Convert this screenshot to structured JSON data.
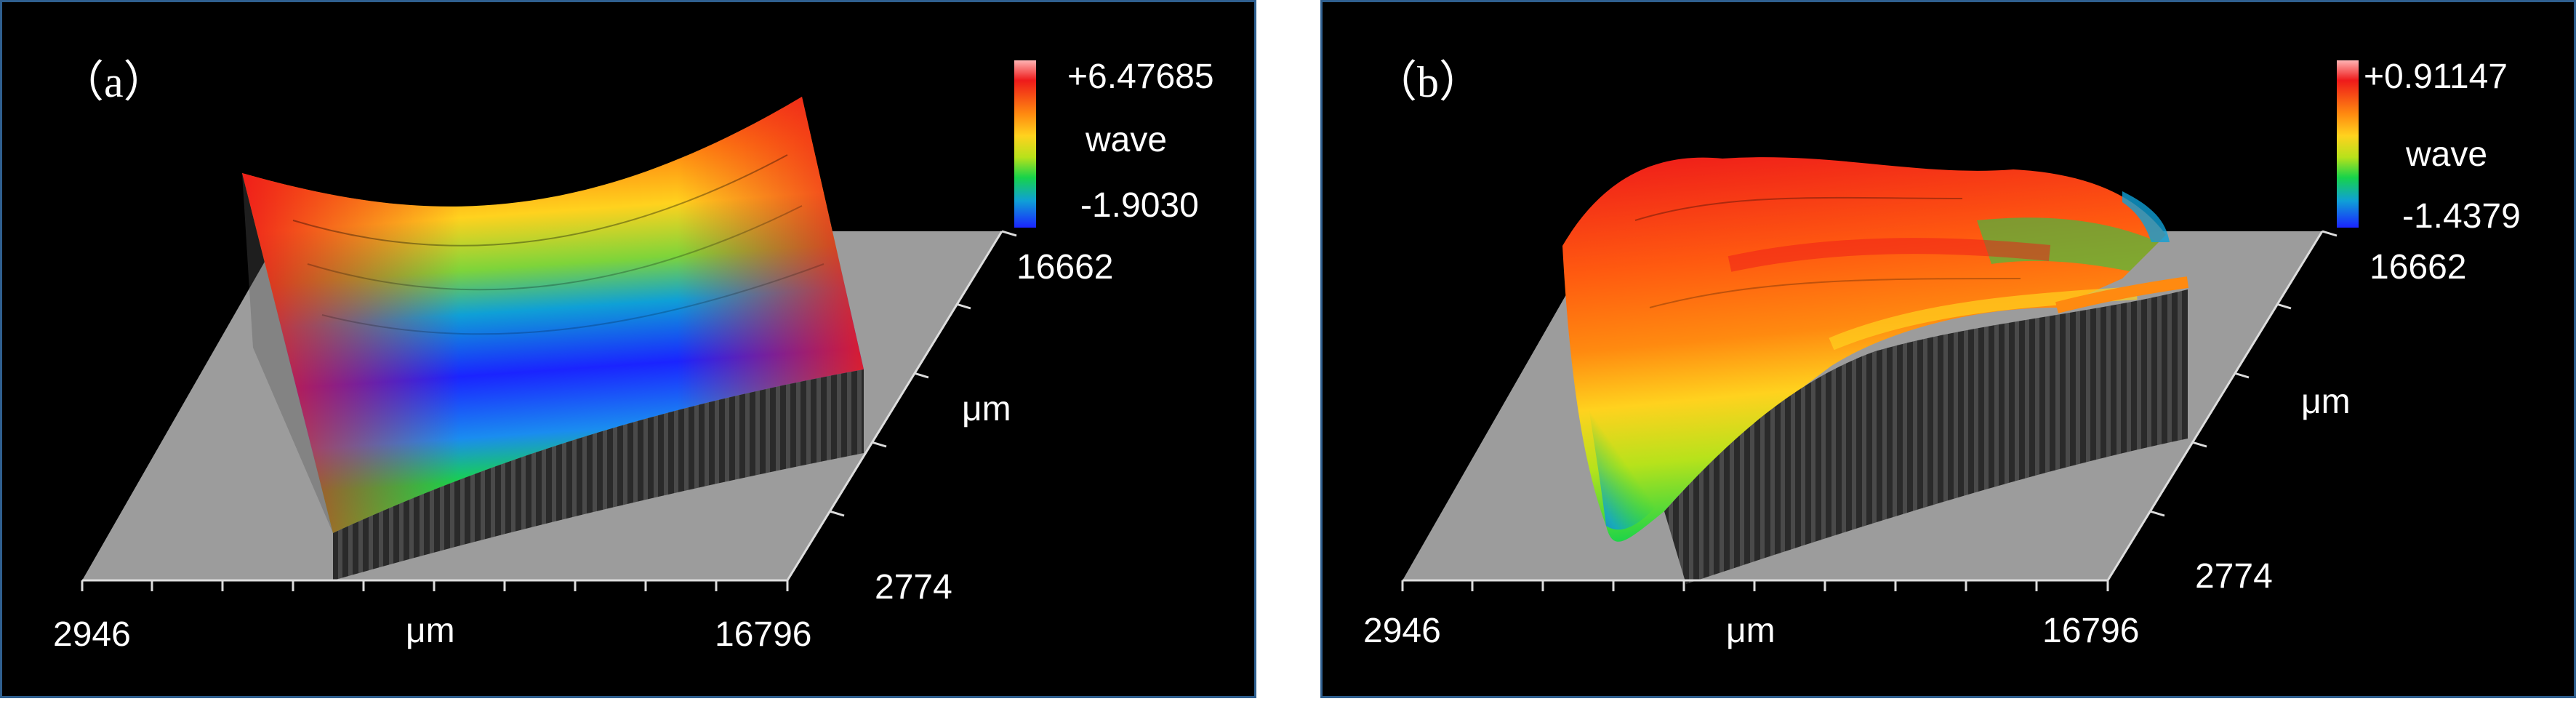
{
  "chart_data": [
    {
      "type": "surface3d",
      "panel_label": "（a）",
      "colorbar": {
        "max_label": "+6.47685",
        "unit_label": "wave",
        "min_label": "-1.9030",
        "max": 6.47685,
        "min": -1.903
      },
      "x_axis": {
        "min_label": "2946",
        "max_label": "16796",
        "unit_label": "μm",
        "min": 2946,
        "max": 16796
      },
      "y_axis": {
        "min_label": "2774",
        "max_label": "16662",
        "unit_label": "μm",
        "min": 2774,
        "max": 16662
      },
      "surface_shape": "saddle",
      "colormap": [
        "#1a24ff",
        "#0fa0d6",
        "#17d34a",
        "#b7e21b",
        "#ffd21e",
        "#ff8a10",
        "#ee1a1a",
        "#ffb3b3"
      ],
      "grid": false
    },
    {
      "type": "surface3d",
      "panel_label": "（b）",
      "colorbar": {
        "max_label": "+0.91147",
        "unit_label": "wave",
        "min_label": "-1.4379",
        "max": 0.91147,
        "min": -1.4379
      },
      "x_axis": {
        "min_label": "2946",
        "max_label": "16796",
        "unit_label": "μm",
        "min": 2946,
        "max": 16796
      },
      "y_axis": {
        "min_label": "2774",
        "max_label": "16662",
        "unit_label": "μm",
        "min": 2774,
        "max": 16662
      },
      "surface_shape": "irregular ridge",
      "colormap": [
        "#1a24ff",
        "#0fa0d6",
        "#17d34a",
        "#b7e21b",
        "#ffd21e",
        "#ff8a10",
        "#ee1a1a",
        "#ffb3b3"
      ],
      "grid": false
    }
  ]
}
